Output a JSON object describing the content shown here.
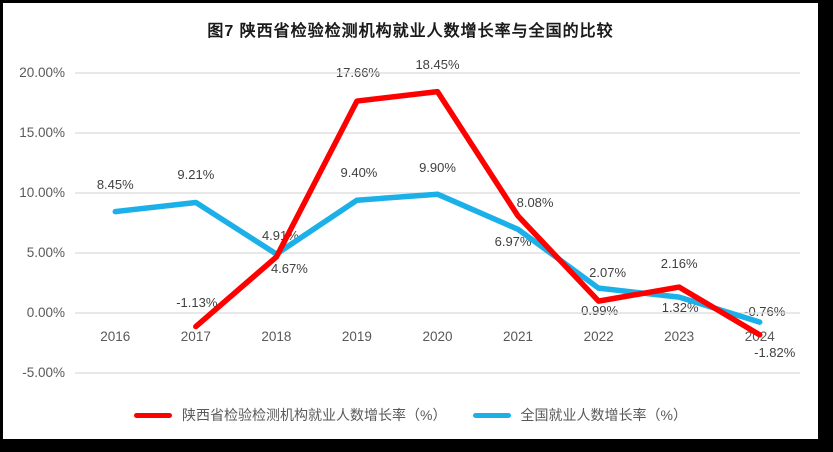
{
  "title": "图7 陕西省检验检测机构就业人数增长率与全国的比较",
  "colors": {
    "shaanxi_line": "#FF0000",
    "national_line": "#1CB0E8",
    "gridline": "#D9D9D9",
    "axis_text": "#595959",
    "data_label_text": "#404040",
    "frame_border": "#000000"
  },
  "chart_data": {
    "type": "line",
    "title": "图7 陕西省检验检测机构就业人数增长率与全国的比较",
    "categories": [
      "2016",
      "2017",
      "2018",
      "2019",
      "2020",
      "2021",
      "2022",
      "2023",
      "2024"
    ],
    "series": [
      {
        "name": "陕西省检验检测机构就业人数增长率（%）",
        "color": "#FF0000",
        "values": [
          null,
          -1.13,
          4.67,
          17.66,
          18.45,
          8.08,
          0.99,
          2.16,
          -1.82
        ],
        "labels": [
          null,
          "-1.13%",
          "4.67%",
          "17.66%",
          "18.45%",
          "8.08%",
          "0.99%",
          "2.16%",
          "-1.82%"
        ]
      },
      {
        "name": "全国就业人数增长率（%）",
        "color": "#1CB0E8",
        "values": [
          8.45,
          9.21,
          4.91,
          9.4,
          9.9,
          6.97,
          2.07,
          1.32,
          -0.76
        ],
        "labels": [
          "8.45%",
          "9.21%",
          "4.91%",
          "9.40%",
          "9.90%",
          "6.97%",
          "2.07%",
          "1.32%",
          "-0.76%"
        ]
      }
    ],
    "y_axis": {
      "tick_labels": [
        "20.00%",
        "15.00%",
        "10.00%",
        "5.00%",
        "0.00%",
        "-5.00%"
      ],
      "tick_values": [
        20,
        15,
        10,
        5,
        0,
        -5
      ],
      "min": -5,
      "max": 20
    },
    "xlabel": "",
    "ylabel": "",
    "grid": true,
    "legend_position": "bottom"
  },
  "legend": {
    "items": [
      {
        "label": "陕西省检验检测机构就业人数增长率（%）",
        "color": "#FF0000"
      },
      {
        "label": "全国就业人数增长率（%）",
        "color": "#1CB0E8"
      }
    ]
  }
}
